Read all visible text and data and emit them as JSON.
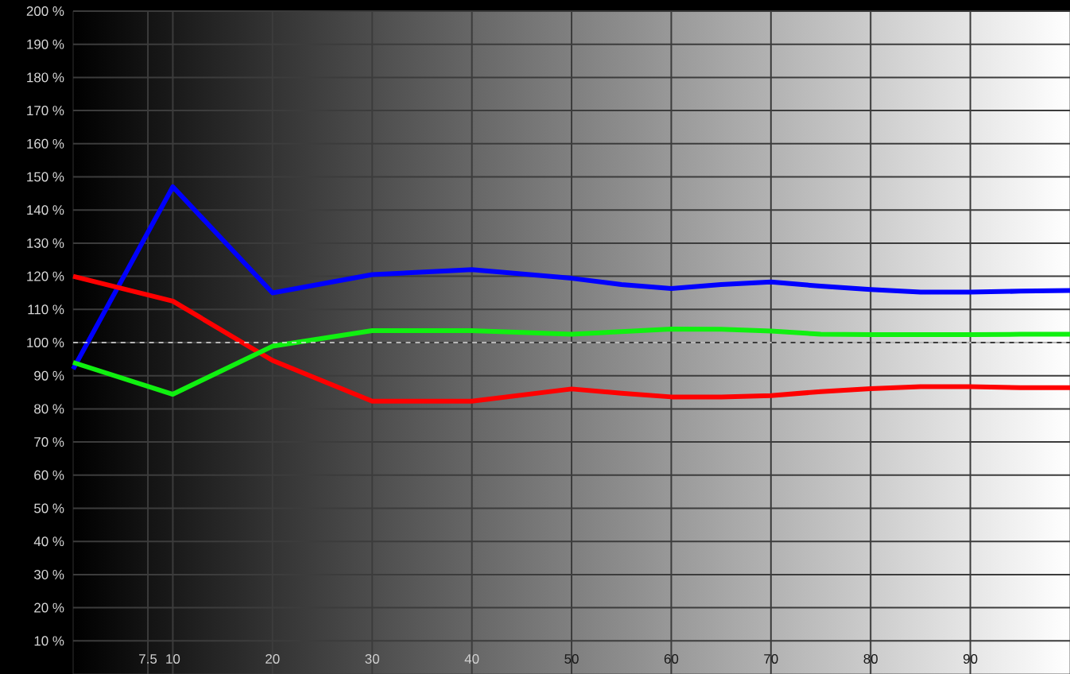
{
  "chart_data": {
    "type": "line",
    "x": [
      0,
      10,
      20,
      30,
      40,
      50,
      55,
      60,
      65,
      70,
      75,
      80,
      85,
      90,
      95,
      100
    ],
    "series": [
      {
        "color": "#0000ff",
        "values": [
          92,
          147,
          115,
          120.5,
          122,
          119.4,
          117.5,
          116.3,
          117.5,
          118.3,
          117,
          116,
          115.2,
          115.2,
          115.5,
          115.7
        ]
      },
      {
        "color": "#ff0000",
        "values": [
          120,
          112.5,
          94.6,
          82.3,
          82.3,
          86,
          84.7,
          83.6,
          83.6,
          84,
          85.2,
          86.1,
          86.7,
          86.7,
          86.4,
          86.4
        ]
      },
      {
        "color": "#10f010",
        "values": [
          94,
          84.4,
          98.9,
          103.6,
          103.6,
          102.5,
          103.3,
          104.1,
          104,
          103.5,
          102.5,
          102.4,
          102.4,
          102.4,
          102.5,
          102.5
        ]
      }
    ],
    "xlim": [
      0,
      100
    ],
    "ylim": [
      0,
      200
    ],
    "xticks": [
      7.5,
      10,
      20,
      30,
      40,
      50,
      60,
      70,
      80,
      90
    ],
    "yticks": [
      {
        "value": 10,
        "label": "10 %"
      },
      {
        "value": 20,
        "label": "20 %"
      },
      {
        "value": 30,
        "label": "30 %"
      },
      {
        "value": 40,
        "label": "40 %"
      },
      {
        "value": 50,
        "label": "50 %"
      },
      {
        "value": 60,
        "label": "60 %"
      },
      {
        "value": 70,
        "label": "70 %"
      },
      {
        "value": 80,
        "label": "80 %"
      },
      {
        "value": 90,
        "label": "90 %"
      },
      {
        "value": 100,
        "label": "100 %"
      },
      {
        "value": 110,
        "label": "110 %"
      },
      {
        "value": 120,
        "label": "120 %"
      },
      {
        "value": 130,
        "label": "130 %"
      },
      {
        "value": 140,
        "label": "140 %"
      },
      {
        "value": 150,
        "label": "150 %"
      },
      {
        "value": 160,
        "label": "160 %"
      },
      {
        "value": 170,
        "label": "170 %"
      },
      {
        "value": 180,
        "label": "180 %"
      },
      {
        "value": 190,
        "label": "190 %"
      },
      {
        "value": 200,
        "label": "200 %"
      }
    ],
    "grid": true,
    "ref_lines": [
      {
        "axis": "y",
        "value": 100,
        "color": "#e0e0e0",
        "line_style": "dashed"
      }
    ]
  }
}
